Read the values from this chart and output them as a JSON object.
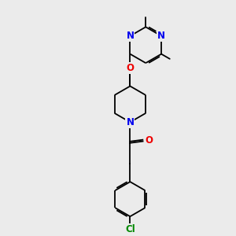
{
  "bg_color": "#ebebeb",
  "atom_colors": {
    "N": "#0000ee",
    "O": "#ee0000",
    "Cl": "#008800",
    "C": "#000000"
  },
  "bond_color": "#000000",
  "font_size_atom": 8.5,
  "lw": 1.3
}
